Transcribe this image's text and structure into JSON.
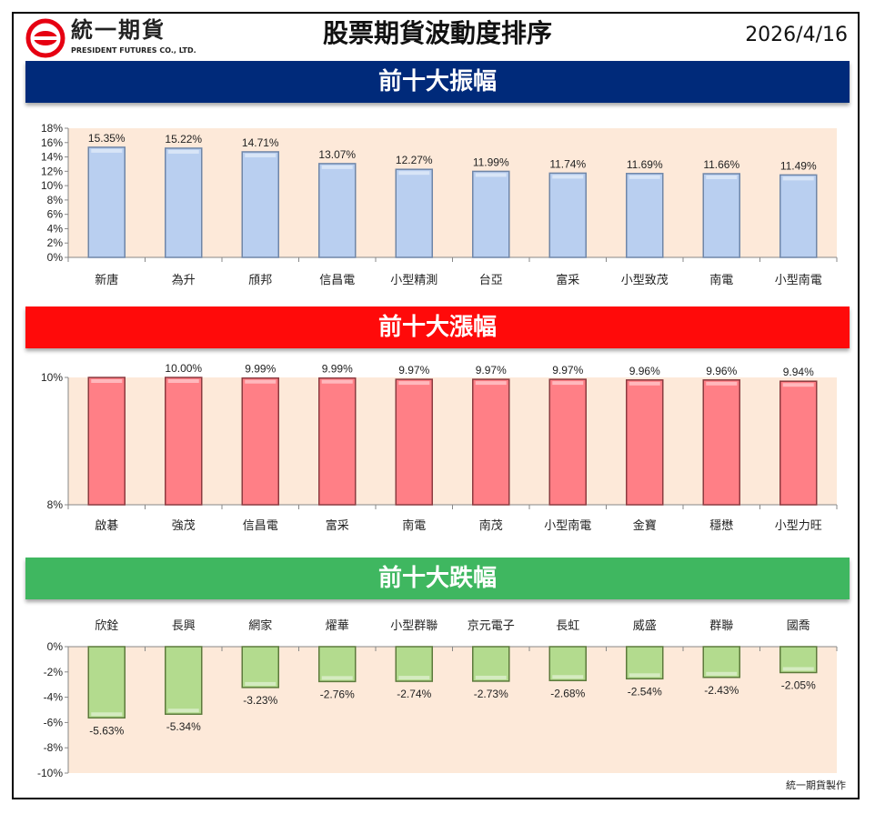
{
  "header": {
    "logo_name": "統一期貨",
    "logo_sub": "PRESIDENT FUTURES CO., LTD.",
    "title": "股票期貨波動度排序",
    "date": "2026/4/16"
  },
  "colors": {
    "blue_banner": "#002a7a",
    "red_banner": "#ff0a0a",
    "green_banner": "#3fb760",
    "plot_bg": "#fde9d9",
    "bar_blue": "#b9cff0",
    "bar_red": "#ff7f86",
    "bar_green": "#b3db8e"
  },
  "footer": "統一期貨製作",
  "chart_data": [
    {
      "type": "bar",
      "title": "前十大振幅",
      "categories": [
        "新唐",
        "為升",
        "頎邦",
        "信昌電",
        "小型精測",
        "台亞",
        "富采",
        "小型致茂",
        "南電",
        "小型南電"
      ],
      "values": [
        15.35,
        15.22,
        14.71,
        13.07,
        12.27,
        11.99,
        11.74,
        11.69,
        11.66,
        11.49
      ],
      "labels": [
        "15.35%",
        "15.22%",
        "14.71%",
        "13.07%",
        "12.27%",
        "11.99%",
        "11.74%",
        "11.69%",
        "11.66%",
        "11.49%"
      ],
      "ylim": [
        0,
        18
      ],
      "yticks": [
        "0%",
        "2%",
        "4%",
        "6%",
        "8%",
        "10%",
        "12%",
        "14%",
        "16%",
        "18%"
      ],
      "ytick_values": [
        0,
        2,
        4,
        6,
        8,
        10,
        12,
        14,
        16,
        18
      ]
    },
    {
      "type": "bar",
      "title": "前十大漲幅",
      "categories": [
        "啟碁",
        "強茂",
        "信昌電",
        "富采",
        "南電",
        "南茂",
        "小型南電",
        "金寶",
        "穩懋",
        "小型力旺"
      ],
      "values": [
        10.0,
        10.0,
        9.99,
        9.99,
        9.97,
        9.97,
        9.97,
        9.96,
        9.96,
        9.94
      ],
      "labels": [
        "",
        "10.00%",
        "9.99%",
        "9.99%",
        "9.97%",
        "9.97%",
        "9.97%",
        "9.96%",
        "9.96%",
        "9.94%"
      ],
      "ylim": [
        8,
        10
      ],
      "yticks": [
        "8%",
        "10%"
      ],
      "ytick_values": [
        8,
        10
      ]
    },
    {
      "type": "bar",
      "title": "前十大跌幅",
      "categories": [
        "欣銓",
        "長興",
        "網家",
        "燿華",
        "小型群聯",
        "京元電子",
        "長虹",
        "威盛",
        "群聯",
        "國喬"
      ],
      "values": [
        -5.63,
        -5.34,
        -3.23,
        -2.76,
        -2.74,
        -2.73,
        -2.68,
        -2.54,
        -2.43,
        -2.05
      ],
      "labels": [
        "-5.63%",
        "-5.34%",
        "-3.23%",
        "-2.76%",
        "-2.74%",
        "-2.73%",
        "-2.68%",
        "-2.54%",
        "-2.43%",
        "-2.05%"
      ],
      "ylim": [
        -10,
        0
      ],
      "yticks": [
        "-10%",
        "-8%",
        "-6%",
        "-4%",
        "-2%",
        "0%"
      ],
      "ytick_values": [
        -10,
        -8,
        -6,
        -4,
        -2,
        0
      ]
    }
  ]
}
